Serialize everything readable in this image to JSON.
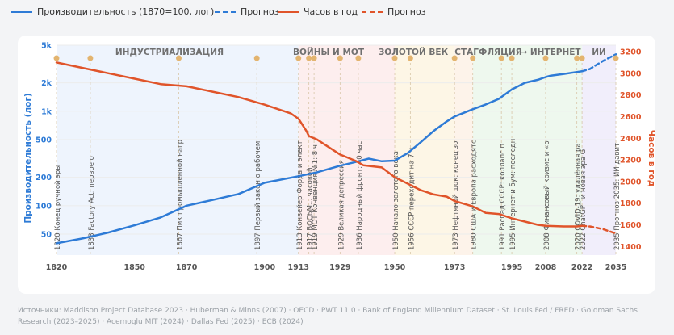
{
  "legend": {
    "productivity": "Производительность (1870=100, лог)",
    "productivity_forecast": "Прогноз",
    "hours": "Часов в год",
    "hours_forecast": "Прогноз"
  },
  "sources": "Источники: Maddison Project Database 2023 · Huberman & Minns (2007) · OECD · PWT 11.0 · Bank of England Millennium Dataset · St. Louis Fed / FRED · Goldman Sachs Research (2023–2025) · Acemoglu MIT (2024) · Dallas Fed (2025) · ECB (2024)",
  "colors": {
    "productivity": "#2e7bd6",
    "hours": "#e0542a",
    "event_dot": "#e3b46f"
  },
  "chart_data": {
    "type": "line",
    "x_range": [
      1820,
      2035
    ],
    "x_ticks": [
      1820,
      1850,
      1870,
      1900,
      1913,
      1929,
      1950,
      1973,
      1995,
      2008,
      2022,
      2035
    ],
    "y_left": {
      "label": "Производительность (лог)",
      "scale": "log",
      "range": [
        30,
        5000
      ],
      "ticks": [
        {
          "v": 50,
          "label": "50"
        },
        {
          "v": 100,
          "label": "100"
        },
        {
          "v": 200,
          "label": "200"
        },
        {
          "v": 500,
          "label": "500"
        },
        {
          "v": 1000,
          "label": "1k"
        },
        {
          "v": 2000,
          "label": "2k"
        },
        {
          "v": 5000,
          "label": "5k"
        }
      ]
    },
    "y_right": {
      "label": "Часов в год",
      "range": [
        1320,
        3260
      ],
      "ticks": [
        1400,
        1600,
        1800,
        2000,
        2200,
        2400,
        2600,
        2800,
        3000,
        3200
      ]
    },
    "eras": [
      {
        "label": "ИНДУСТРИАЛИЗАЦИЯ",
        "from": 1820,
        "to": 1913,
        "color": "#eef4fd"
      },
      {
        "label": "ВОЙНЫ И МОТ",
        "from": 1913,
        "to": 1950,
        "color": "#fdeeee"
      },
      {
        "label": "ЗОЛОТОЙ ВЕК",
        "from": 1950,
        "to": 1973,
        "color": "#fdf6e6"
      },
      {
        "label": "СТАГФЛЯЦИЯ",
        "from": 1973,
        "to": 1980,
        "color": "#fdf3ea"
      },
      {
        "label": "→ ИНТЕРНЕТ",
        "from": 1980,
        "to": 2022,
        "color": "#eef8ee"
      },
      {
        "label": "ИИ",
        "from": 2022,
        "to": 2035,
        "color": "#f1eefb"
      }
    ],
    "series": [
      {
        "name": "Производительность (1870=100, лог)",
        "axis": "left",
        "x": [
          1820,
          1830,
          1840,
          1850,
          1860,
          1870,
          1880,
          1890,
          1900,
          1913,
          1920,
          1929,
          1935,
          1940,
          1945,
          1950,
          1955,
          1960,
          1965,
          1970,
          1973,
          1980,
          1985,
          1990,
          1995,
          2000,
          2005,
          2008,
          2010,
          2015,
          2020,
          2022
        ],
        "y": [
          40,
          45,
          52,
          62,
          75,
          100,
          115,
          133,
          175,
          205,
          225,
          265,
          290,
          315,
          295,
          300,
          360,
          470,
          620,
          780,
          880,
          1050,
          1180,
          1350,
          1700,
          2000,
          2150,
          2300,
          2380,
          2480,
          2600,
          2650
        ]
      },
      {
        "name": "Прогноз",
        "axis": "left",
        "dashed": true,
        "x": [
          2022,
          2025,
          2030,
          2035
        ],
        "y": [
          2650,
          2800,
          3400,
          4000
        ]
      },
      {
        "name": "Часов в год",
        "axis": "right",
        "x": [
          1820,
          1830,
          1840,
          1850,
          1860,
          1870,
          1880,
          1890,
          1900,
          1910,
          1913,
          1916,
          1917,
          1920,
          1929,
          1935,
          1938,
          1945,
          1950,
          1955,
          1960,
          1965,
          1970,
          1973,
          1980,
          1985,
          1990,
          1995,
          2000,
          2005,
          2008,
          2015,
          2020,
          2022
        ],
        "y": [
          3100,
          3050,
          3000,
          2950,
          2900,
          2880,
          2830,
          2780,
          2710,
          2630,
          2580,
          2470,
          2420,
          2390,
          2250,
          2190,
          2150,
          2130,
          2040,
          1980,
          1920,
          1880,
          1860,
          1820,
          1770,
          1710,
          1700,
          1660,
          1630,
          1600,
          1590,
          1585,
          1585,
          1590
        ]
      },
      {
        "name": "Прогноз",
        "axis": "right",
        "dashed": true,
        "x": [
          2022,
          2025,
          2030,
          2035
        ],
        "y": [
          1590,
          1585,
          1560,
          1520
        ]
      }
    ],
    "events": [
      {
        "year": 1820,
        "label": "1820 Конец ручной эры"
      },
      {
        "year": 1833,
        "label": "1833 Factory Act: первое о"
      },
      {
        "year": 1867,
        "label": "1867 Пик промышленной нагр"
      },
      {
        "year": 1897,
        "label": "1897 Первый закон о рабочем"
      },
      {
        "year": 1913,
        "label": "1913 Конвейер Форда и элект"
      },
      {
        "year": 1917,
        "label": "1917 ВОСЬМ... часовой"
      },
      {
        "year": 1919,
        "label": "1919 МОТ Конвенция №1: 8 ч"
      },
      {
        "year": 1929,
        "label": "1929 Великая депрессия"
      },
      {
        "year": 1936,
        "label": "1936 Народный фронт: 40 час"
      },
      {
        "year": 1950,
        "label": "1950 Начало золотого века"
      },
      {
        "year": 1956,
        "label": "1956 СССР переходит на 7 ч"
      },
      {
        "year": 1973,
        "label": "1973 Нефтяной шок: конец зо"
      },
      {
        "year": 1980,
        "label": "1980 США и Европа расходятс"
      },
      {
        "year": 1991,
        "label": "1991 Распад СССР: коллапс п"
      },
      {
        "year": 1995,
        "label": "1995 Интернет и бум: последн"
      },
      {
        "year": 2008,
        "label": "2008 Финансовый кризис и «р"
      },
      {
        "year": 2020,
        "label": "2020 COVID-19: удалённая ра"
      },
      {
        "year": 2022,
        "label": "2022 ChatGPT и новая эра G"
      },
      {
        "year": 2035,
        "label": "2035 Прогноз 2035: ИИ давит"
      }
    ]
  }
}
